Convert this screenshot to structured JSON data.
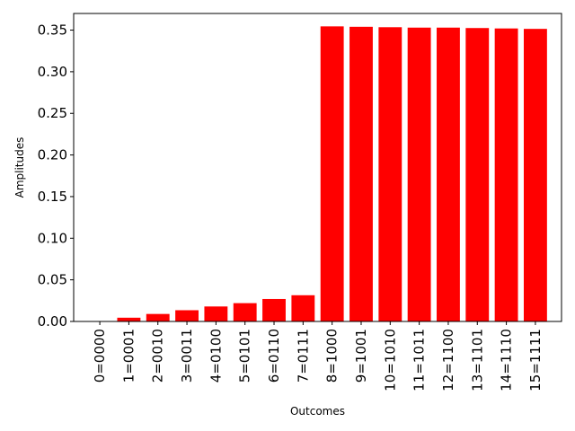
{
  "chart_data": {
    "type": "bar",
    "xlabel": "Outcomes",
    "ylabel": "Amplitudes",
    "ylim": [
      0,
      0.37
    ],
    "yticks": [
      "0.00",
      "0.05",
      "0.10",
      "0.15",
      "0.20",
      "0.25",
      "0.30",
      "0.35"
    ],
    "categories": [
      "0=0000",
      "1=0001",
      "2=0010",
      "3=0011",
      "4=0100",
      "5=0101",
      "6=0110",
      "7=0111",
      "8=1000",
      "9=1001",
      "10=1010",
      "11=1011",
      "12=1100",
      "13=1101",
      "14=1110",
      "15=1111"
    ],
    "values": [
      0.0,
      0.0045,
      0.009,
      0.0135,
      0.018,
      0.022,
      0.027,
      0.0315,
      0.3545,
      0.354,
      0.3535,
      0.353,
      0.353,
      0.3525,
      0.352,
      0.3515
    ],
    "bar_color": "#ff0000",
    "grid": false,
    "legend": false
  }
}
